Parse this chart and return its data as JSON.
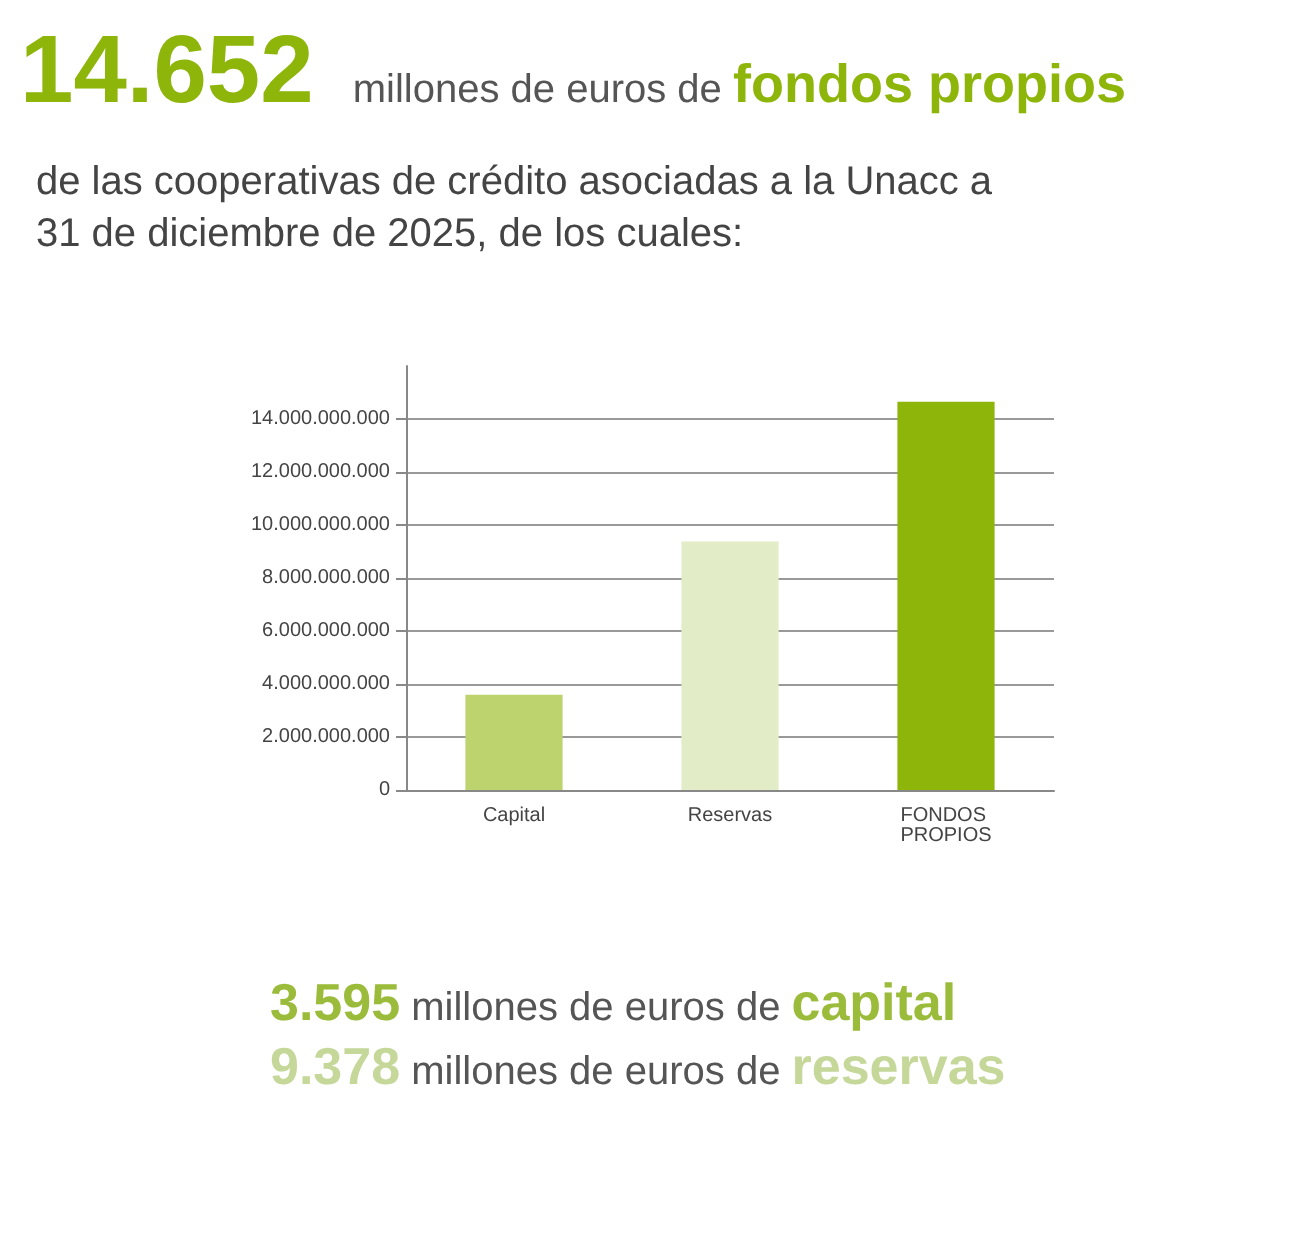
{
  "chart_data": {
    "type": "bar",
    "title": "14.652 millones de euros de fondos propios",
    "subtitle": "de las cooperativas de crédito asociadas a la Unacc a 31 de diciembre de 2025, de los cuales:",
    "categories": [
      "Capital",
      "Reservas",
      "FONDOS PROPIOS"
    ],
    "values": [
      3595000000,
      9378000000,
      14652000000
    ],
    "colors": [
      "#bcd36e",
      "#e2ecc6",
      "#8db50a"
    ],
    "ylim": [
      0,
      16000000000
    ],
    "yticks": [
      {
        "value": 0,
        "label": "0"
      },
      {
        "value": 2000000000,
        "label": "2.000.000.000"
      },
      {
        "value": 4000000000,
        "label": "4.000.000.000"
      },
      {
        "value": 6000000000,
        "label": "6.000.000.000"
      },
      {
        "value": 8000000000,
        "label": "8.000.000.000"
      },
      {
        "value": 10000000000,
        "label": "10.000.000.000"
      },
      {
        "value": 12000000000,
        "label": "12.000.000.000"
      },
      {
        "value": 14000000000,
        "label": "14.000.000.000"
      }
    ],
    "grid": "y",
    "annotations": [
      "3.595 millones de euros de capital",
      "9.378 millones de euros de reservas"
    ]
  }
}
